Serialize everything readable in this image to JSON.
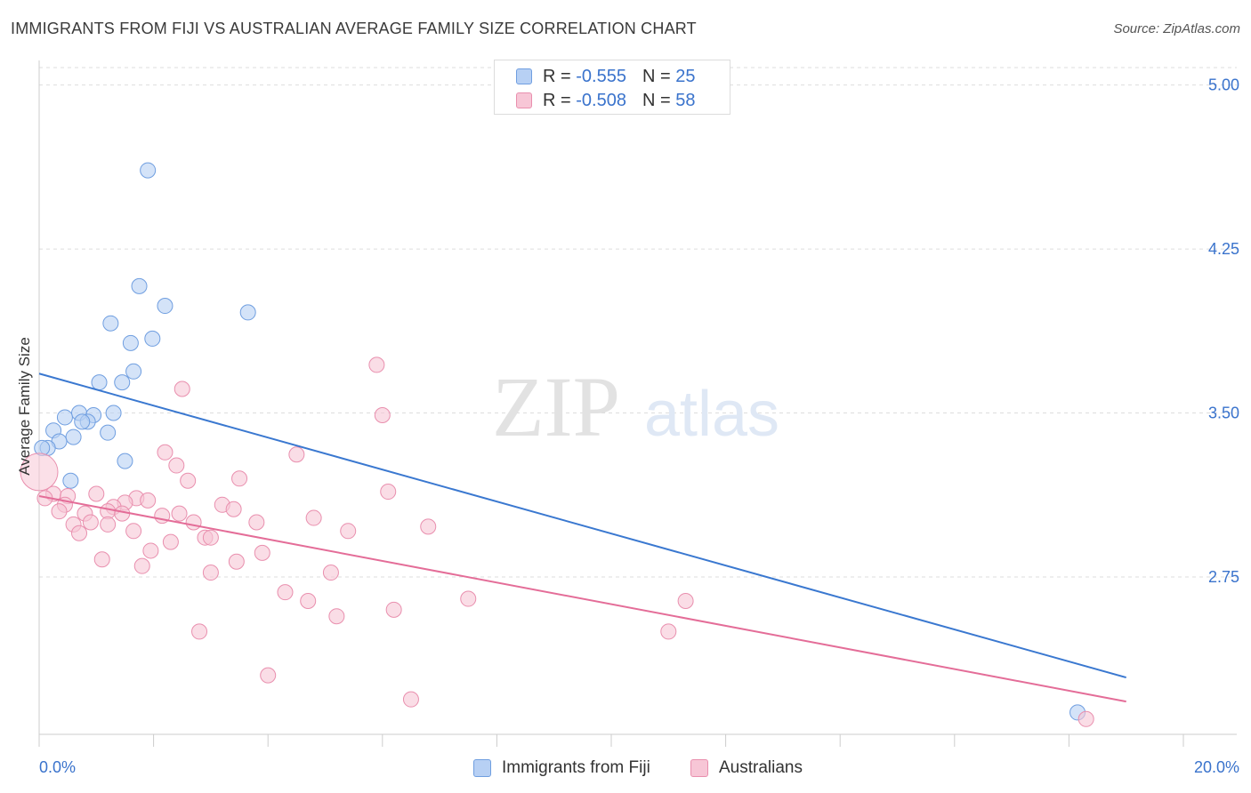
{
  "header": {
    "title": "IMMIGRANTS FROM FIJI VS AUSTRALIAN AVERAGE FAMILY SIZE CORRELATION CHART",
    "source": "Source: ZipAtlas.com"
  },
  "watermark": {
    "zip": "ZIP",
    "atlas": "atlas"
  },
  "legend": {
    "rows": [
      {
        "r_label": "R =",
        "r_value": "-0.555",
        "n_label": "N =",
        "n_value": "25",
        "fill": "#b7d0f4",
        "stroke": "#6f9ee0"
      },
      {
        "r_label": "R =",
        "r_value": "-0.508",
        "n_label": "N =",
        "n_value": "58",
        "fill": "#f7c6d6",
        "stroke": "#e98fae"
      }
    ]
  },
  "colors": {
    "series1_fill": "#b7d0f4",
    "series1_stroke": "#6f9ee0",
    "series1_line": "#3a78d0",
    "series2_fill": "#f7c6d6",
    "series2_stroke": "#e98fae",
    "series2_line": "#e46d98",
    "tick_label": "#3a73cc",
    "grid": "#dddddd",
    "axis": "#cccccc"
  },
  "chart_data": {
    "type": "scatter",
    "title": "IMMIGRANTS FROM FIJI VS AUSTRALIAN AVERAGE FAMILY SIZE CORRELATION CHART",
    "xlabel": "",
    "ylabel": "Average Family Size",
    "xlim": [
      0,
      20
    ],
    "ylim": [
      2.03,
      5.08
    ],
    "x_tick_labels": [
      "0.0%",
      "20.0%"
    ],
    "y_ticks": [
      5.0,
      4.25,
      3.5,
      2.75
    ],
    "y_tick_labels": [
      "5.00",
      "4.25",
      "3.50",
      "2.75"
    ],
    "grid": "horizontal dashed",
    "legend_position": "top-center",
    "series": [
      {
        "name": "Immigrants from Fiji",
        "trend": {
          "x": [
            0,
            19.0
          ],
          "y": [
            3.68,
            2.29
          ]
        },
        "points": [
          {
            "x": 1.9,
            "y": 4.61
          },
          {
            "x": 1.75,
            "y": 4.08
          },
          {
            "x": 2.2,
            "y": 3.99
          },
          {
            "x": 3.65,
            "y": 3.96
          },
          {
            "x": 1.25,
            "y": 3.91
          },
          {
            "x": 1.98,
            "y": 3.84
          },
          {
            "x": 1.6,
            "y": 3.82
          },
          {
            "x": 1.65,
            "y": 3.69
          },
          {
            "x": 1.05,
            "y": 3.64
          },
          {
            "x": 1.45,
            "y": 3.64
          },
          {
            "x": 0.7,
            "y": 3.5
          },
          {
            "x": 1.3,
            "y": 3.5
          },
          {
            "x": 0.95,
            "y": 3.49
          },
          {
            "x": 0.45,
            "y": 3.48
          },
          {
            "x": 0.85,
            "y": 3.46
          },
          {
            "x": 0.75,
            "y": 3.46
          },
          {
            "x": 0.25,
            "y": 3.42
          },
          {
            "x": 1.2,
            "y": 3.41
          },
          {
            "x": 0.6,
            "y": 3.39
          },
          {
            "x": 0.35,
            "y": 3.37
          },
          {
            "x": 0.15,
            "y": 3.34
          },
          {
            "x": 0.05,
            "y": 3.34
          },
          {
            "x": 1.5,
            "y": 3.28
          },
          {
            "x": 0.55,
            "y": 3.19
          },
          {
            "x": 18.15,
            "y": 2.13
          }
        ]
      },
      {
        "name": "Australians",
        "trend": {
          "x": [
            0,
            19.0
          ],
          "y": [
            3.12,
            2.18
          ]
        },
        "points": [
          {
            "x": 0.0,
            "y": 3.23,
            "big": true
          },
          {
            "x": 5.9,
            "y": 3.72
          },
          {
            "x": 2.5,
            "y": 3.61
          },
          {
            "x": 6.0,
            "y": 3.49
          },
          {
            "x": 2.2,
            "y": 3.32
          },
          {
            "x": 4.5,
            "y": 3.31
          },
          {
            "x": 2.4,
            "y": 3.26
          },
          {
            "x": 2.6,
            "y": 3.19
          },
          {
            "x": 3.5,
            "y": 3.2
          },
          {
            "x": 6.1,
            "y": 3.14
          },
          {
            "x": 0.25,
            "y": 3.13
          },
          {
            "x": 0.5,
            "y": 3.12
          },
          {
            "x": 0.1,
            "y": 3.11
          },
          {
            "x": 1.0,
            "y": 3.13
          },
          {
            "x": 1.7,
            "y": 3.11
          },
          {
            "x": 1.9,
            "y": 3.1
          },
          {
            "x": 1.5,
            "y": 3.09
          },
          {
            "x": 3.2,
            "y": 3.08
          },
          {
            "x": 0.45,
            "y": 3.08
          },
          {
            "x": 1.3,
            "y": 3.07
          },
          {
            "x": 3.4,
            "y": 3.06
          },
          {
            "x": 0.35,
            "y": 3.05
          },
          {
            "x": 1.2,
            "y": 3.05
          },
          {
            "x": 0.8,
            "y": 3.04
          },
          {
            "x": 1.45,
            "y": 3.04
          },
          {
            "x": 2.15,
            "y": 3.03
          },
          {
            "x": 2.45,
            "y": 3.04
          },
          {
            "x": 4.8,
            "y": 3.02
          },
          {
            "x": 2.7,
            "y": 3.0
          },
          {
            "x": 3.8,
            "y": 3.0
          },
          {
            "x": 0.6,
            "y": 2.99
          },
          {
            "x": 0.9,
            "y": 3.0
          },
          {
            "x": 1.2,
            "y": 2.99
          },
          {
            "x": 6.8,
            "y": 2.98
          },
          {
            "x": 1.65,
            "y": 2.96
          },
          {
            "x": 5.4,
            "y": 2.96
          },
          {
            "x": 0.7,
            "y": 2.95
          },
          {
            "x": 2.9,
            "y": 2.93
          },
          {
            "x": 3.0,
            "y": 2.93
          },
          {
            "x": 2.3,
            "y": 2.91
          },
          {
            "x": 1.95,
            "y": 2.87
          },
          {
            "x": 3.9,
            "y": 2.86
          },
          {
            "x": 1.1,
            "y": 2.83
          },
          {
            "x": 3.45,
            "y": 2.82
          },
          {
            "x": 1.8,
            "y": 2.8
          },
          {
            "x": 3.0,
            "y": 2.77
          },
          {
            "x": 5.1,
            "y": 2.77
          },
          {
            "x": 4.3,
            "y": 2.68
          },
          {
            "x": 7.5,
            "y": 2.65
          },
          {
            "x": 11.3,
            "y": 2.64
          },
          {
            "x": 4.7,
            "y": 2.64
          },
          {
            "x": 6.2,
            "y": 2.6
          },
          {
            "x": 5.2,
            "y": 2.57
          },
          {
            "x": 2.8,
            "y": 2.5
          },
          {
            "x": 11.0,
            "y": 2.5
          },
          {
            "x": 4.0,
            "y": 2.3
          },
          {
            "x": 6.5,
            "y": 2.19
          },
          {
            "x": 18.3,
            "y": 2.1
          }
        ]
      }
    ]
  }
}
